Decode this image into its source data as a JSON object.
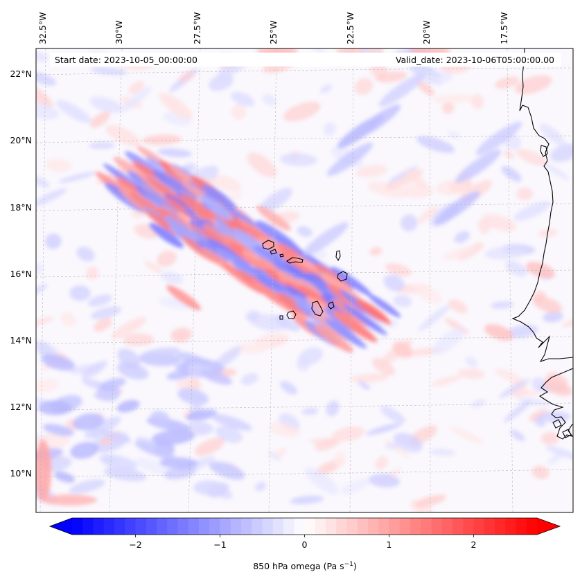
{
  "header": {
    "start_date": "Start date: 2023-10-05_00:00:00",
    "valid_date": "Valid_date: 2023-10-06T05:00:00.00"
  },
  "longitude_labels": [
    "32.5°W",
    "30°W",
    "27.5°W",
    "25°W",
    "22.5°W",
    "20°W",
    "17.5°W"
  ],
  "latitude_labels": [
    "22°N",
    "20°N",
    "18°N",
    "16°N",
    "14°N",
    "12°N",
    "10°N"
  ],
  "colorbar": {
    "label_main": "850 hPa omega (Pa s",
    "label_exp": "−1",
    "label_close": ")",
    "ticks": [
      "−2",
      "−1",
      "0",
      "1",
      "2"
    ],
    "range": [
      -2.75,
      2.75
    ],
    "extend": "both",
    "cmap": "bwr",
    "color_min": "#0000ff",
    "color_mid": "#ffffff",
    "color_max": "#ff0000"
  },
  "map": {
    "field": "850 hPa omega",
    "extent_lon": [
      -33,
      -15.5
    ],
    "extent_lat": [
      8.8,
      22.8
    ],
    "coastline_color": "#000000",
    "gridline_style": "dashed-grey"
  }
}
